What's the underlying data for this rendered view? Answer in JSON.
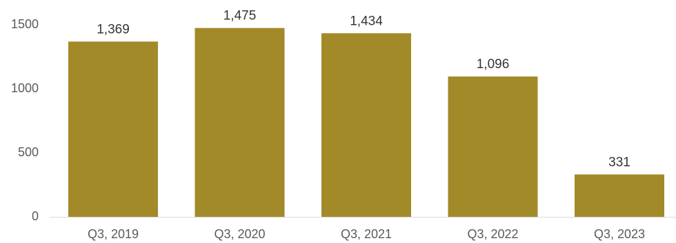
{
  "chart_data": {
    "type": "bar",
    "categories": [
      "Q3, 2019",
      "Q3, 2020",
      "Q3, 2021",
      "Q3, 2022",
      "Q3, 2023"
    ],
    "values": [
      1369,
      1475,
      1434,
      1096,
      331
    ],
    "value_labels": [
      "1,369",
      "1,475",
      "1,434",
      "1,096",
      "331"
    ],
    "y_ticks": [
      0,
      500,
      1000,
      1500
    ],
    "y_tick_labels": [
      "0",
      "500",
      "1000",
      "1500"
    ],
    "ylim": [
      0,
      1500
    ],
    "title": "",
    "xlabel": "",
    "ylabel": "",
    "grid": false,
    "legend": "none",
    "bar_color": "#A38A29",
    "axis_color": "#d9d9d9"
  }
}
